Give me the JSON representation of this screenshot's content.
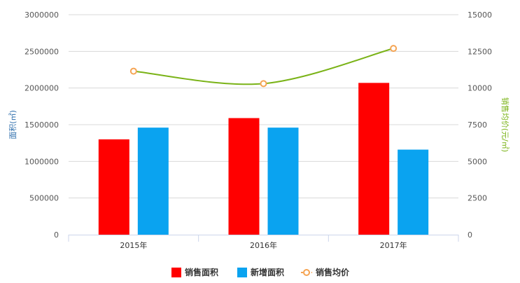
{
  "chart_data": {
    "type": "bar",
    "categories": [
      "2015年",
      "2016年",
      "2017年"
    ],
    "series": [
      {
        "name": "销售面积",
        "kind": "bar",
        "axis": "left",
        "color": "#ff0000",
        "values": [
          1300000,
          1590000,
          2070000
        ]
      },
      {
        "name": "新增面积",
        "kind": "bar",
        "axis": "left",
        "color": "#0aa3f0",
        "values": [
          1460000,
          1460000,
          1160000
        ]
      },
      {
        "name": "销售均价",
        "kind": "line",
        "axis": "right",
        "color": "#7ab317",
        "marker_color": "#f5a453",
        "values": [
          11150,
          10300,
          12700
        ]
      }
    ],
    "ylabel_left": "面积(㎡)",
    "ylabel_right": "销售均价(元/㎡)",
    "ylim_left": [
      0,
      3000000
    ],
    "ylim_right": [
      0,
      15000
    ],
    "yticks_left": [
      "0",
      "500000",
      "1000000",
      "1500000",
      "2000000",
      "2500000",
      "3000000"
    ],
    "yticks_right": [
      "0",
      "2500",
      "5000",
      "7500",
      "10000",
      "12500",
      "15000"
    ],
    "grid": true,
    "legend_position": "bottom-center",
    "colors": {
      "left_axis_title": "#2f6fad",
      "right_axis_title": "#7ab317",
      "grid": "#d8d8d8",
      "axis": "#ccd6eb"
    }
  }
}
